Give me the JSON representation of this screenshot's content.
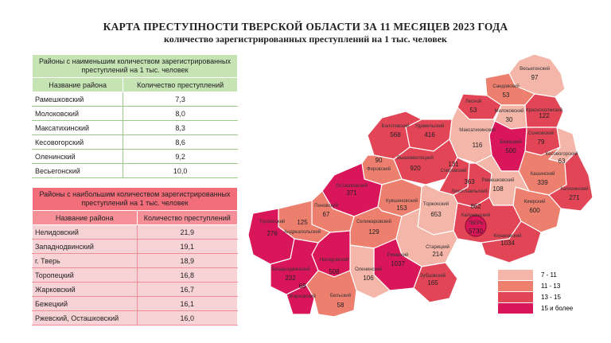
{
  "title": "КАРТА ПРЕСТУПНОСТИ ТВЕРСКОЙ ОБЛАСТИ ЗА 11 МЕСЯЦЕВ 2023 ГОДА",
  "subtitle": "количество зарегистрированных преступлений на 1 тыс. человек",
  "colors": {
    "c1": "#f3b6a8",
    "c2": "#ec7f6e",
    "c3": "#e14556",
    "c4": "#d9165a",
    "green_header": "#c6e3b4",
    "red_header": "#f26d7a"
  },
  "lowest_table": {
    "caption": "Районы с наименьшим количеством зарегистрированных преступлений на 1 тыс. человек",
    "col_name": "Название района",
    "col_value": "Количество преступлений",
    "rows": [
      {
        "name": "Рамешковский",
        "value": "7,3"
      },
      {
        "name": "Молоковский",
        "value": "8,0"
      },
      {
        "name": "Максатихинский",
        "value": "8,3"
      },
      {
        "name": "Кесовогорский",
        "value": "8,6"
      },
      {
        "name": "Оленинский",
        "value": "9,2"
      },
      {
        "name": "Весьегонский",
        "value": "10,0"
      }
    ]
  },
  "highest_table": {
    "caption": "Районы с наибольшим количеством зарегистрированных преступлений на 1 тыс. человек",
    "col_name": "Название района",
    "col_value": "Количество преступлений",
    "rows": [
      {
        "name": "Нелидовский",
        "value": "21,9"
      },
      {
        "name": "Западнодвинский",
        "value": "19,1"
      },
      {
        "name": "г. Тверь",
        "value": "18,9"
      },
      {
        "name": "Торопецкий",
        "value": "16,8"
      },
      {
        "name": "Жарковский",
        "value": "16,7"
      },
      {
        "name": "Бежецкий",
        "value": "16,1"
      },
      {
        "name": "Ржевский, Осташковский",
        "value": "16,0"
      }
    ]
  },
  "legend": [
    {
      "label": "7 - 11",
      "color": "#f3b6a8"
    },
    {
      "label": "11 - 13",
      "color": "#ec7f6e"
    },
    {
      "label": "13 - 15",
      "color": "#e14556"
    },
    {
      "label": "15 и более",
      "color": "#d9165a"
    }
  ],
  "districts": [
    {
      "name": "Весьегонский",
      "value": "97",
      "color": "#f3b6a8"
    },
    {
      "name": "Сандовский",
      "value": "53",
      "color": "#ec7f6e"
    },
    {
      "name": "Лесной",
      "value": "53",
      "color": "#e14556"
    },
    {
      "name": "Молоковский",
      "value": "30",
      "color": "#f3b6a8"
    },
    {
      "name": "Краснохолмский",
      "value": "122",
      "color": "#e14556"
    },
    {
      "name": "Сонковский",
      "value": "79",
      "color": "#e14556"
    },
    {
      "name": "Кесовогорский",
      "value": "63",
      "color": "#f3b6a8"
    },
    {
      "name": "Кашинский",
      "value": "339",
      "color": "#ec7f6e"
    },
    {
      "name": "Калязинский",
      "value": "271",
      "color": "#e14556"
    },
    {
      "name": "Кимрский",
      "value": "600",
      "color": "#ec7f6e"
    },
    {
      "name": "Бежецкий",
      "value": "500",
      "color": "#d9165a"
    },
    {
      "name": "Максатихинский",
      "value": "116",
      "color": "#f3b6a8"
    },
    {
      "name": "Удомельский",
      "value": "416",
      "color": "#e14556"
    },
    {
      "name": "Бологовский",
      "value": "568",
      "color": "#e14556"
    },
    {
      "name": "Вышневолоцкий",
      "value": "920",
      "color": "#e14556"
    },
    {
      "name": "Фировский",
      "value": "90",
      "color": "#ec7f6e"
    },
    {
      "name": "Спировский",
      "value": "131",
      "color": "#e14556"
    },
    {
      "name": "Лихославльский",
      "value": "363",
      "color": "#e14556"
    },
    {
      "name": "Рамешковский",
      "value": "108",
      "color": "#f3b6a8"
    },
    {
      "name": "Осташковский",
      "value": "371",
      "color": "#d9165a"
    },
    {
      "name": "Кувшиновский",
      "value": "153",
      "color": "#ec7f6e"
    },
    {
      "name": "Торжокский",
      "value": "653",
      "color": "#f3b6a8"
    },
    {
      "name": "Калининский",
      "value": "862",
      "color": "#e14556"
    },
    {
      "name": "ТВЕРЬ",
      "value": "5730",
      "color": "#d9165a"
    },
    {
      "name": "Конаковский",
      "value": "1034",
      "color": "#e14556"
    },
    {
      "name": "Пеновский",
      "value": "67",
      "color": "#ec7f6e"
    },
    {
      "name": "Андреапольский",
      "value": "125",
      "color": "#ec7f6e"
    },
    {
      "name": "Торопецкий",
      "value": "276",
      "color": "#d9165a"
    },
    {
      "name": "Селижаровский",
      "value": "129",
      "color": "#ec7f6e"
    },
    {
      "name": "Старицкий",
      "value": "214",
      "color": "#f3b6a8"
    },
    {
      "name": "Ржевский",
      "value": "1037",
      "color": "#d9165a"
    },
    {
      "name": "Зубцовский",
      "value": "165",
      "color": "#e14556"
    },
    {
      "name": "Оленинский",
      "value": "106",
      "color": "#f3b6a8"
    },
    {
      "name": "Нелидовский",
      "value": "508",
      "color": "#d9165a"
    },
    {
      "name": "Западнодвинский",
      "value": "232",
      "color": "#d9165a"
    },
    {
      "name": "Жарковский",
      "value": "68",
      "color": "#d9165a"
    },
    {
      "name": "Бельский",
      "value": "58",
      "color": "#ec7f6e"
    }
  ]
}
